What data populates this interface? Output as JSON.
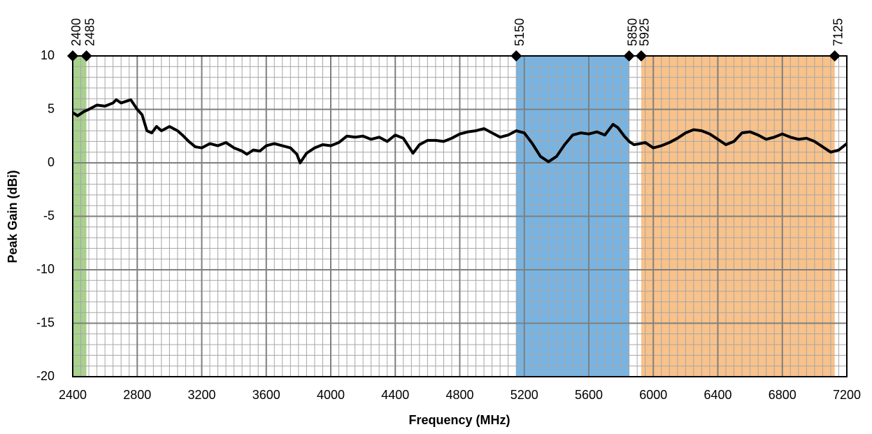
{
  "chart_data": {
    "type": "line",
    "xlabel": "Frequency (MHz)",
    "ylabel": "Peak Gain (dBi)",
    "xlim": [
      2400,
      7200
    ],
    "ylim": [
      -20,
      10
    ],
    "xticks": [
      2400,
      2800,
      3200,
      3600,
      4000,
      4400,
      4800,
      5200,
      5600,
      6000,
      6400,
      6800,
      7200
    ],
    "yticks": [
      -20,
      -15,
      -10,
      -5,
      0,
      5,
      10
    ],
    "grid": true,
    "grid_minor": {
      "x": 50,
      "y": 1
    },
    "bands": [
      {
        "range": [
          2400,
          2485
        ],
        "color": "#a9d18e"
      },
      {
        "range": [
          5150,
          5850
        ],
        "color": "#78b4e2"
      },
      {
        "range": [
          5925,
          7125
        ],
        "color": "#f8c28a"
      }
    ],
    "markers": [
      2400,
      2485,
      5150,
      5850,
      5925,
      7125
    ],
    "x": [
      2400,
      2430,
      2470,
      2500,
      2550,
      2600,
      2650,
      2670,
      2700,
      2760,
      2800,
      2830,
      2860,
      2890,
      2920,
      2950,
      3000,
      3050,
      3080,
      3120,
      3160,
      3200,
      3250,
      3300,
      3350,
      3400,
      3450,
      3480,
      3520,
      3560,
      3600,
      3650,
      3700,
      3750,
      3790,
      3810,
      3850,
      3900,
      3950,
      4000,
      4050,
      4100,
      4150,
      4200,
      4250,
      4300,
      4350,
      4400,
      4450,
      4480,
      4510,
      4550,
      4600,
      4650,
      4700,
      4750,
      4800,
      4850,
      4900,
      4950,
      5000,
      5050,
      5100,
      5150,
      5200,
      5250,
      5300,
      5350,
      5400,
      5450,
      5500,
      5550,
      5600,
      5650,
      5700,
      5750,
      5780,
      5820,
      5850,
      5880,
      5920,
      5950,
      6000,
      6050,
      6100,
      6150,
      6200,
      6250,
      6300,
      6350,
      6400,
      6450,
      6500,
      6550,
      6600,
      6650,
      6700,
      6750,
      6800,
      6850,
      6900,
      6950,
      7000,
      7050,
      7100,
      7150,
      7200
    ],
    "series": [
      {
        "color": "#000000",
        "values": [
          4.7,
          4.4,
          4.8,
          5.0,
          5.4,
          5.3,
          5.6,
          5.9,
          5.6,
          5.9,
          5.0,
          4.5,
          3.0,
          2.8,
          3.4,
          3.0,
          3.4,
          3.0,
          2.6,
          2.0,
          1.5,
          1.4,
          1.8,
          1.6,
          1.9,
          1.4,
          1.1,
          0.8,
          1.2,
          1.1,
          1.6,
          1.8,
          1.6,
          1.4,
          0.8,
          0.0,
          0.9,
          1.4,
          1.7,
          1.6,
          1.9,
          2.5,
          2.4,
          2.5,
          2.2,
          2.4,
          2.0,
          2.6,
          2.3,
          1.6,
          0.9,
          1.7,
          2.1,
          2.1,
          2.0,
          2.3,
          2.7,
          2.9,
          3.0,
          3.2,
          2.8,
          2.4,
          2.6,
          3.0,
          2.8,
          1.8,
          0.6,
          0.1,
          0.6,
          1.7,
          2.6,
          2.8,
          2.7,
          2.9,
          2.6,
          3.6,
          3.3,
          2.5,
          2.0,
          1.7,
          1.8,
          1.9,
          1.4,
          1.6,
          1.9,
          2.3,
          2.8,
          3.1,
          3.0,
          2.7,
          2.2,
          1.7,
          2.0,
          2.8,
          2.9,
          2.6,
          2.2,
          2.4,
          2.7,
          2.4,
          2.2,
          2.3,
          2.0,
          1.5,
          1.0,
          1.2,
          1.8
        ]
      }
    ]
  }
}
